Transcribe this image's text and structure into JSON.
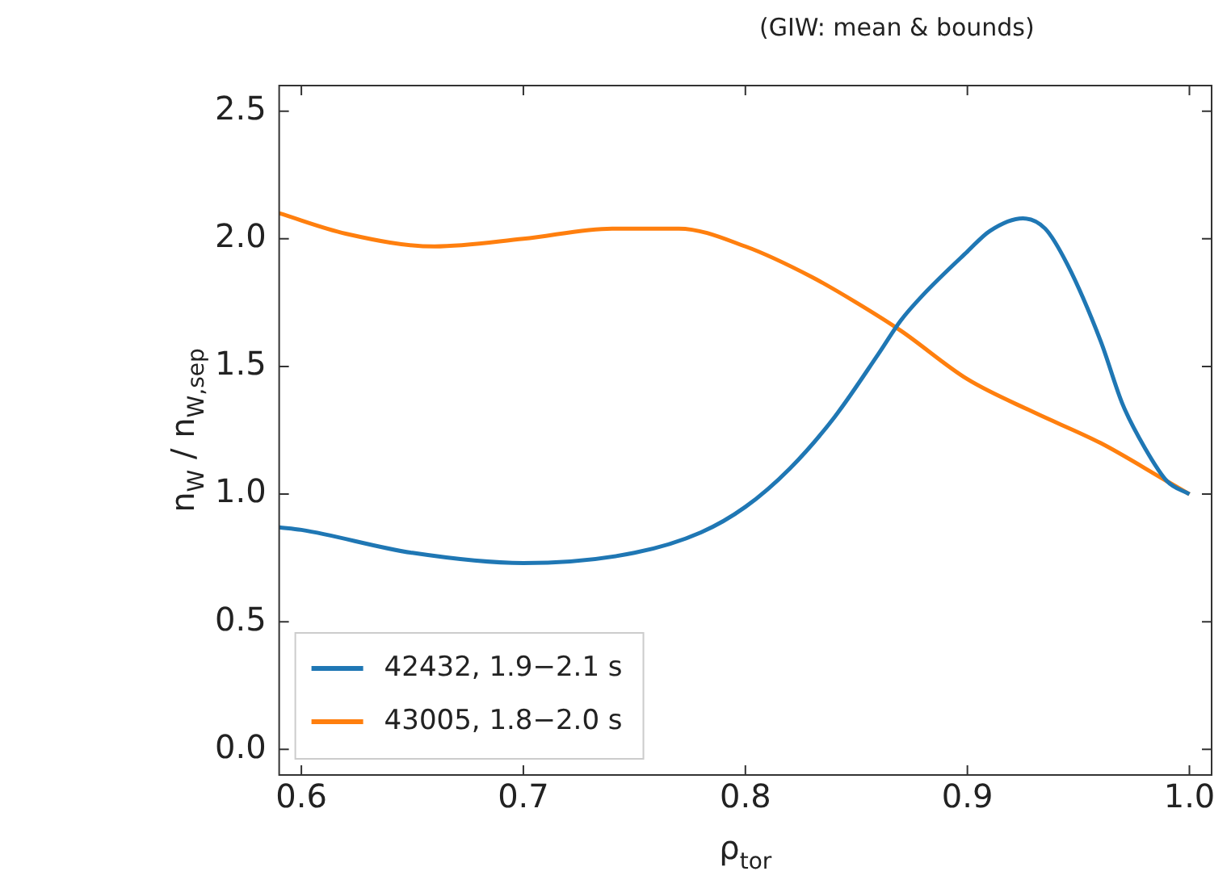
{
  "chart_data": {
    "type": "line",
    "xlabel": "ρ$_{tor}$",
    "ylabel": "n$_{W}$ / n$_{W,sep}$",
    "annotations": [
      "(GIW: mean & bounds)"
    ],
    "xlim": [
      0.59,
      1.01
    ],
    "xticks": [
      0.6,
      0.7,
      0.8,
      0.9,
      {
        "value": 1,
        "label": "1.0"
      }
    ],
    "ylim": [
      -0.1,
      2.6
    ],
    "yticks": [
      {
        "value": 0,
        "label": "0.0"
      },
      0.5,
      {
        "value": 1,
        "label": "1.0"
      },
      1.5,
      {
        "value": 2,
        "label": "2.0"
      },
      2.5
    ],
    "legend": "bottom left",
    "marker": "none",
    "line_style": "solid",
    "series": [
      {
        "name": "42432, 1.9−2.1 s",
        "color": "#1f77b4",
        "x": [
          0.59,
          0.6,
          0.65,
          0.7,
          0.75,
          0.78,
          0.8,
          0.82,
          0.84,
          0.86,
          0.87,
          0.88,
          0.9,
          0.91,
          0.925,
          0.935,
          0.945,
          0.96,
          0.97,
          0.98,
          0.99,
          1.0
        ],
        "values": [
          0.87,
          0.86,
          0.77,
          0.73,
          0.77,
          0.85,
          0.95,
          1.1,
          1.3,
          1.55,
          1.68,
          1.78,
          1.95,
          2.03,
          2.08,
          2.04,
          1.9,
          1.6,
          1.35,
          1.18,
          1.05,
          1.0
        ]
      },
      {
        "name": "43005, 1.8−2.0 s",
        "color": "#ff7f0e",
        "x": [
          0.59,
          0.62,
          0.66,
          0.7,
          0.74,
          0.77,
          0.8,
          0.83,
          0.85,
          0.87,
          0.9,
          0.93,
          0.96,
          0.99,
          1.0
        ],
        "values": [
          2.1,
          2.02,
          1.97,
          2.0,
          2.04,
          2.04,
          1.97,
          1.85,
          1.75,
          1.64,
          1.45,
          1.32,
          1.2,
          1.05,
          1.0
        ]
      }
    ]
  }
}
